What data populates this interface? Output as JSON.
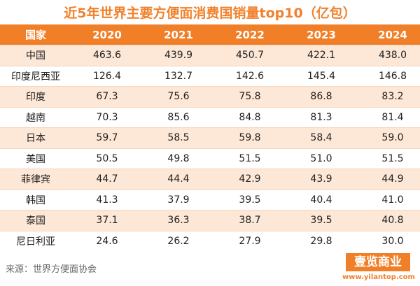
{
  "header": {
    "title": "近5年世界主要方便面消费国销量top10（亿包）"
  },
  "table": {
    "columns": [
      "国家",
      "2020",
      "2021",
      "2022",
      "2023",
      "2024"
    ],
    "rows": [
      [
        "中国",
        "463.6",
        "439.9",
        "450.7",
        "422.1",
        "438.0"
      ],
      [
        "印度尼西亚",
        "126.4",
        "132.7",
        "142.6",
        "145.4",
        "146.8"
      ],
      [
        "印度",
        "67.3",
        "75.6",
        "75.8",
        "86.8",
        "83.2"
      ],
      [
        "越南",
        "70.3",
        "85.6",
        "84.8",
        "81.3",
        "81.4"
      ],
      [
        "日本",
        "59.7",
        "58.5",
        "59.8",
        "58.4",
        "59.0"
      ],
      [
        "美国",
        "50.5",
        "49.8",
        "51.5",
        "51.0",
        "51.5"
      ],
      [
        "菲律宾",
        "44.7",
        "44.4",
        "42.9",
        "43.9",
        "44.9"
      ],
      [
        "韩国",
        "41.3",
        "37.9",
        "39.5",
        "40.4",
        "41.0"
      ],
      [
        "泰国",
        "37.1",
        "36.3",
        "38.7",
        "39.5",
        "40.8"
      ],
      [
        "尼日利亚",
        "24.6",
        "26.2",
        "27.9",
        "29.8",
        "30.0"
      ]
    ]
  },
  "footer": {
    "source": "来源：世界方便面协会",
    "logo": "壹览商业",
    "url": "www.yilantop.com"
  }
}
